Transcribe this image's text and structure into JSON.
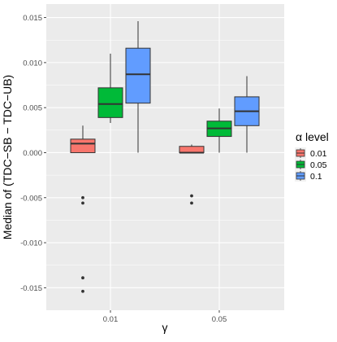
{
  "chart_data": {
    "type": "boxplot",
    "title": "",
    "xlabel": "γ",
    "ylabel": "Median of (TDC−SB − TDC−UB)",
    "categories": [
      "0.01",
      "0.05"
    ],
    "ylim": [
      -0.0175,
      0.0165
    ],
    "yticks": [
      -0.015,
      -0.01,
      -0.005,
      0.0,
      0.005,
      0.01,
      0.015
    ],
    "ytick_labels": [
      "-0.015",
      "-0.010",
      "-0.005",
      "0.000",
      "0.005",
      "0.010",
      "0.015"
    ],
    "grid": true,
    "legend": {
      "title": "α level",
      "placement": "right",
      "entries": [
        "0.01",
        "0.05",
        "0.1"
      ]
    },
    "series": [
      {
        "name": "0.01",
        "color": "#F8766D",
        "boxes": [
          {
            "category": "0.01",
            "whisker_low": 0.0,
            "q1": 0.0,
            "median": 0.001,
            "q3": 0.0015,
            "whisker_high": 0.003,
            "outliers": [
              -0.005,
              -0.0056,
              -0.0139,
              -0.0154
            ]
          },
          {
            "category": "0.05",
            "whisker_low": 0.0,
            "q1": 0.0,
            "median": 0.0,
            "q3": 0.0007,
            "whisker_high": 0.0009,
            "outliers": [
              -0.0048,
              -0.0056
            ]
          }
        ]
      },
      {
        "name": "0.05",
        "color": "#00BA38",
        "boxes": [
          {
            "category": "0.01",
            "whisker_low": 0.0033,
            "q1": 0.0039,
            "median": 0.0054,
            "q3": 0.0072,
            "whisker_high": 0.011,
            "outliers": []
          },
          {
            "category": "0.05",
            "whisker_low": 0.0,
            "q1": 0.0018,
            "median": 0.0027,
            "q3": 0.0035,
            "whisker_high": 0.0049,
            "outliers": []
          }
        ]
      },
      {
        "name": "0.1",
        "color": "#619CFF",
        "boxes": [
          {
            "category": "0.01",
            "whisker_low": 0.0,
            "q1": 0.0055,
            "median": 0.0087,
            "q3": 0.0116,
            "whisker_high": 0.0146,
            "outliers": []
          },
          {
            "category": "0.05",
            "whisker_low": 0.0,
            "q1": 0.003,
            "median": 0.0046,
            "q3": 0.0062,
            "whisker_high": 0.0085,
            "outliers": []
          }
        ]
      }
    ]
  }
}
